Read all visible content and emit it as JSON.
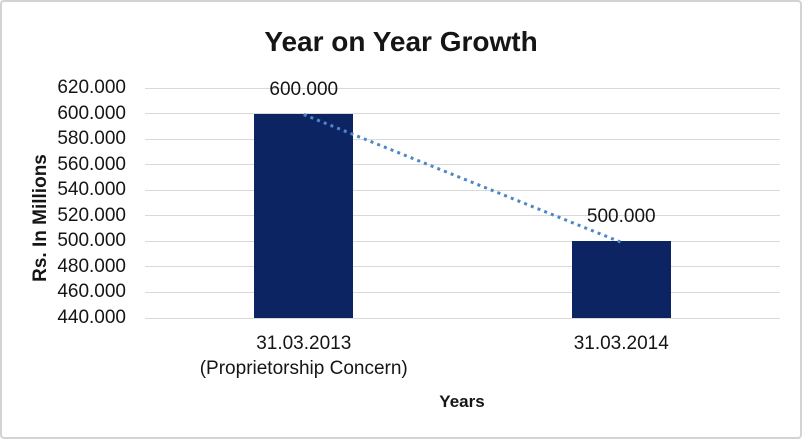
{
  "chart": {
    "title": "Year on Year Growth",
    "x_axis_title": "Years",
    "y_axis_title": "Rs. In Millions"
  },
  "chart_data": {
    "type": "bar",
    "title": "Year on Year Growth",
    "xlabel": "Years",
    "ylabel": "Rs. In Millions",
    "categories": [
      "31.03.2013 (Proprietorship Concern)",
      "31.03.2014"
    ],
    "category_lines": [
      [
        "31.03.2013",
        "(Proprietorship Concern)"
      ],
      [
        "31.03.2014"
      ]
    ],
    "values": [
      600,
      500
    ],
    "data_labels": [
      "600.000",
      "500.000"
    ],
    "ylim": [
      440,
      620
    ],
    "ytick_values": [
      620,
      600,
      580,
      560,
      540,
      520,
      500,
      480,
      460,
      440
    ],
    "ytick_labels": [
      "620.000",
      "600.000",
      "580.000",
      "560.000",
      "540.000",
      "520.000",
      "500.000",
      "480.000",
      "460.000",
      "440.000"
    ],
    "grid": true,
    "legend": false,
    "colors": {
      "bar": "#0d2463",
      "trendline": "#4e86c6",
      "gridline": "#d9d9d9",
      "text": "#151515",
      "frame_border": "#d3d3d3"
    },
    "trendline": {
      "style": "dotted",
      "from_value": 600,
      "to_value": 500
    }
  }
}
